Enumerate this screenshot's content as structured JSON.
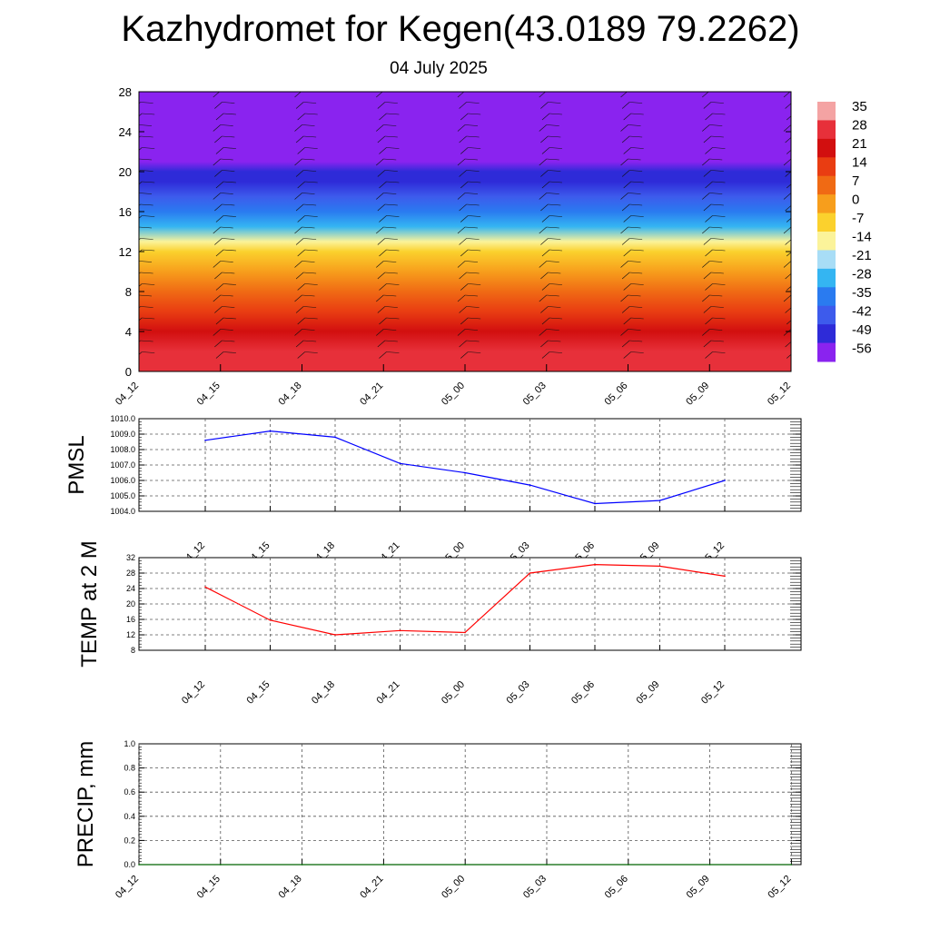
{
  "header": {
    "title": "Kazhydromet for Kegen(43.0189 79.2262)",
    "subtitle": "04 July 2025"
  },
  "chart_data": [
    {
      "type": "heatmap",
      "ylabel": "",
      "ylim": [
        0,
        28
      ],
      "yticks": [
        "0",
        "4",
        "8",
        "12",
        "16",
        "20",
        "24",
        "28"
      ],
      "x": [
        "04_12",
        "04_15",
        "04_18",
        "04_21",
        "05_00",
        "05_03",
        "05_06",
        "05_09",
        "05_12"
      ],
      "wind_barbs": true,
      "z_profile": [
        {
          "y": 0,
          "value": 28
        },
        {
          "y": 2,
          "value": 25
        },
        {
          "y": 4,
          "value": 21
        },
        {
          "y": 6,
          "value": 16
        },
        {
          "y": 8,
          "value": 10
        },
        {
          "y": 10,
          "value": 3
        },
        {
          "y": 12,
          "value": -6
        },
        {
          "y": 13,
          "value": -14
        },
        {
          "y": 14.5,
          "value": -28
        },
        {
          "y": 16,
          "value": -38
        },
        {
          "y": 17.5,
          "value": -45
        },
        {
          "y": 19,
          "value": -50
        },
        {
          "y": 20,
          "value": -52
        },
        {
          "y": 21,
          "value": -54
        },
        {
          "y": 22.5,
          "value": -57
        },
        {
          "y": 28,
          "value": -60
        }
      ],
      "colorbar": {
        "labels": [
          "35",
          "28",
          "21",
          "14",
          "7",
          "0",
          "-7",
          "-14",
          "-21",
          "-28",
          "-35",
          "-42",
          "-49",
          "-56"
        ],
        "colors": [
          "#f4a3a3",
          "#e7303a",
          "#d20f0f",
          "#e93d12",
          "#f06a14",
          "#f79e1c",
          "#fbd12d",
          "#fbf39a",
          "#a8ddf6",
          "#34b5f2",
          "#2a7bf0",
          "#3d5bec",
          "#2e2bd8",
          "#8a23ef"
        ]
      }
    },
    {
      "type": "line",
      "ylabel": "PMSL",
      "ylim": [
        1004.0,
        1010.0
      ],
      "yticks": [
        "1004.0",
        "1005.0",
        "1006.0",
        "1007.0",
        "1008.0",
        "1009.0",
        "1010.0"
      ],
      "categories": [
        "04_12",
        "04_15",
        "04_18",
        "04_21",
        "05_00",
        "05_03",
        "05_06",
        "05_09",
        "05_12"
      ],
      "values": [
        1008.6,
        1009.2,
        1008.8,
        1007.1,
        1006.5,
        1005.7,
        1004.5,
        1004.7,
        1006.0
      ],
      "color": "#0000ff"
    },
    {
      "type": "line",
      "ylabel": "TEMP at 2 M",
      "ylim": [
        8,
        32
      ],
      "yticks": [
        "8",
        "12",
        "16",
        "20",
        "24",
        "28",
        "32"
      ],
      "categories": [
        "04_12",
        "04_15",
        "04_18",
        "04_21",
        "05_00",
        "05_03",
        "05_06",
        "05_09",
        "05_12"
      ],
      "values": [
        24.4,
        15.8,
        12.0,
        13.1,
        12.6,
        28.0,
        30.2,
        29.8,
        27.2
      ],
      "color": "#ff0000"
    },
    {
      "type": "line",
      "ylabel": "PRECIP, mm",
      "ylim": [
        0.0,
        1.0
      ],
      "yticks": [
        "0.0",
        "0.2",
        "0.4",
        "0.6",
        "0.8",
        "1.0"
      ],
      "categories": [
        "04_12",
        "04_15",
        "04_18",
        "04_21",
        "05_00",
        "05_03",
        "05_06",
        "05_09",
        "05_12"
      ],
      "values": [
        0,
        0,
        0,
        0,
        0,
        0,
        0,
        0,
        0
      ],
      "color": "#006400"
    }
  ]
}
